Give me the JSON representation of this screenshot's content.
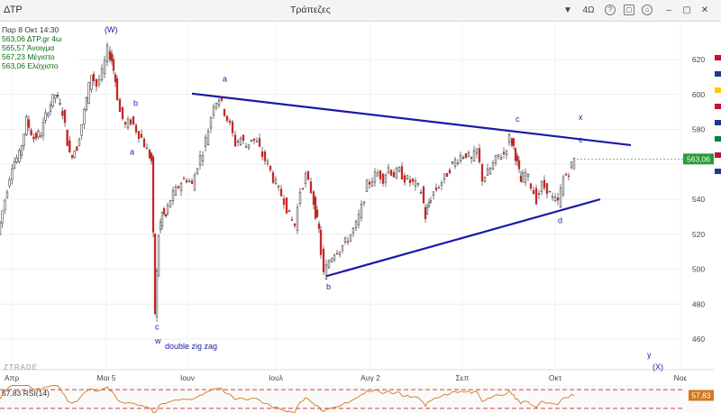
{
  "toolbar": {
    "symbol": "ΔΤΡ",
    "title": "Τράπεζες",
    "interval": "4Ω"
  },
  "info_panel": {
    "datetime": "Παρ 8 Οκτ 14:30",
    "lines": [
      "563,06 ΔΤΡ.gr 4ω",
      "565,57 Άνοιγμα",
      "567,23 Μέγιστο",
      "563,06 Ελάχιστο"
    ]
  },
  "watermark": "ZTRADE",
  "colors": {
    "up": "#1a8a2a",
    "down": "#c82020",
    "trendline": "#1a1aa6",
    "label": "#1a1aa6",
    "rsi": "#d27a1e",
    "rsi_band": "#d44040",
    "price_tag": "#2a9a3a"
  },
  "chart_data": {
    "type": "candlestick",
    "ylim": [
      440,
      640
    ],
    "yticks": [
      460,
      480,
      500,
      520,
      540,
      560,
      580,
      600,
      620
    ],
    "ytick_labels": [
      "460",
      "480",
      "500",
      "520",
      "540",
      "",
      "580",
      "600",
      "620"
    ],
    "xticks": [
      {
        "label": "Απρ",
        "x": 13
      },
      {
        "label": "Μαι 5",
        "x": 118
      },
      {
        "label": "Ιουν",
        "x": 208
      },
      {
        "label": "Ιουλ",
        "x": 306
      },
      {
        "label": "Αυγ 2",
        "x": 411
      },
      {
        "label": "Σεπ",
        "x": 513
      },
      {
        "label": "Οκτ",
        "x": 616
      },
      {
        "label": "Νοε",
        "x": 755
      }
    ],
    "path": [
      [
        0,
        520
      ],
      [
        8,
        540
      ],
      [
        16,
        560
      ],
      [
        24,
        565
      ],
      [
        32,
        585
      ],
      [
        40,
        575
      ],
      [
        48,
        578
      ],
      [
        56,
        592
      ],
      [
        64,
        600
      ],
      [
        72,
        590
      ],
      [
        80,
        565
      ],
      [
        88,
        570
      ],
      [
        96,
        590
      ],
      [
        104,
        612
      ],
      [
        110,
        605
      ],
      [
        116,
        612
      ],
      [
        122,
        625
      ],
      [
        126,
        620
      ],
      [
        130,
        608
      ],
      [
        136,
        590
      ],
      [
        142,
        582
      ],
      [
        148,
        585
      ],
      [
        154,
        580
      ],
      [
        160,
        575
      ],
      [
        166,
        568
      ],
      [
        170,
        562
      ],
      [
        174,
        475
      ],
      [
        178,
        520
      ],
      [
        182,
        532
      ],
      [
        186,
        530
      ],
      [
        192,
        540
      ],
      [
        198,
        545
      ],
      [
        204,
        550
      ],
      [
        210,
        552
      ],
      [
        216,
        548
      ],
      [
        222,
        560
      ],
      [
        228,
        568
      ],
      [
        234,
        580
      ],
      [
        240,
        595
      ],
      [
        246,
        598
      ],
      [
        252,
        590
      ],
      [
        258,
        582
      ],
      [
        264,
        572
      ],
      [
        270,
        575
      ],
      [
        276,
        570
      ],
      [
        282,
        575
      ],
      [
        288,
        572
      ],
      [
        294,
        565
      ],
      [
        300,
        560
      ],
      [
        306,
        552
      ],
      [
        312,
        545
      ],
      [
        318,
        540
      ],
      [
        324,
        530
      ],
      [
        330,
        525
      ],
      [
        336,
        545
      ],
      [
        342,
        553
      ],
      [
        348,
        545
      ],
      [
        352,
        532
      ],
      [
        356,
        522
      ],
      [
        362,
        497
      ],
      [
        368,
        505
      ],
      [
        374,
        510
      ],
      [
        380,
        512
      ],
      [
        386,
        515
      ],
      [
        392,
        520
      ],
      [
        398,
        525
      ],
      [
        404,
        535
      ],
      [
        410,
        548
      ],
      [
        416,
        552
      ],
      [
        422,
        555
      ],
      [
        428,
        552
      ],
      [
        434,
        558
      ],
      [
        440,
        554
      ],
      [
        446,
        556
      ],
      [
        452,
        552
      ],
      [
        458,
        550
      ],
      [
        464,
        548
      ],
      [
        470,
        545
      ],
      [
        474,
        530
      ],
      [
        478,
        538
      ],
      [
        484,
        544
      ],
      [
        490,
        548
      ],
      [
        496,
        552
      ],
      [
        502,
        558
      ],
      [
        508,
        562
      ],
      [
        514,
        565
      ],
      [
        520,
        566
      ],
      [
        526,
        562
      ],
      [
        532,
        568
      ],
      [
        538,
        552
      ],
      [
        544,
        555
      ],
      [
        550,
        560
      ],
      [
        556,
        565
      ],
      [
        562,
        566
      ],
      [
        568,
        575
      ],
      [
        572,
        570
      ],
      [
        576,
        560
      ],
      [
        580,
        550
      ],
      [
        586,
        555
      ],
      [
        592,
        548
      ],
      [
        598,
        540
      ],
      [
        604,
        548
      ],
      [
        610,
        546
      ],
      [
        616,
        540
      ],
      [
        622,
        538
      ],
      [
        628,
        552
      ],
      [
        634,
        556
      ],
      [
        640,
        563
      ]
    ],
    "trendlines": [
      {
        "from": [
          213,
          600.5
        ],
        "to": [
          700,
          571
        ]
      },
      {
        "from": [
          362,
          496
        ],
        "to": [
          666,
          540
        ]
      }
    ],
    "wave_labels": [
      {
        "text": "(W)",
        "x": 116,
        "y": 637
      },
      {
        "text": "b",
        "x": 148,
        "y": 595
      },
      {
        "text": "a",
        "x": 144,
        "y": 567
      },
      {
        "text": "c",
        "x": 172,
        "y": 467
      },
      {
        "text": "w",
        "x": 172,
        "y": 459
      },
      {
        "text": "double zig zag",
        "x": 183,
        "y": 456
      },
      {
        "text": "a",
        "x": 247,
        "y": 609
      },
      {
        "text": "b",
        "x": 362,
        "y": 490
      },
      {
        "text": "c",
        "x": 572,
        "y": 586
      },
      {
        "text": "x",
        "x": 642,
        "y": 587
      },
      {
        "text": "e",
        "x": 642,
        "y": 574
      },
      {
        "text": "d",
        "x": 619,
        "y": 528
      },
      {
        "text": "y",
        "x": 718,
        "y": 451
      },
      {
        "text": "(X)",
        "x": 724,
        "y": 444
      }
    ],
    "last_price": 563.06,
    "last_price_label": "563,06",
    "rsi": {
      "label": "57,83 RSI(14)",
      "value_label": "57,83",
      "value": 57.83,
      "ylim": [
        20,
        80
      ],
      "upper": 70,
      "lower": 30
    }
  }
}
